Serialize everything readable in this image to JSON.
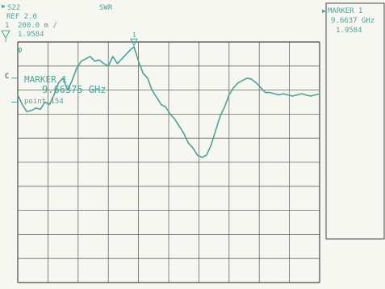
{
  "header": {
    "channel": "S22",
    "format": "SWR",
    "ref": "REF 2.0",
    "scale_num": "1",
    "scale": "200.0 m /",
    "readout": "1.9584"
  },
  "left_labels": {
    "phi": "φ",
    "c": "C"
  },
  "marker_box": {
    "title": "MARKER 1",
    "freq": "9.66375 GHz",
    "point": "point 154"
  },
  "side_panel": {
    "title": "MARKER 1",
    "freq": "9.6637 GHz",
    "value": "1.9584"
  },
  "chart_data": {
    "type": "line",
    "title": "",
    "xlabel": "",
    "ylabel": "",
    "marker_label": "1",
    "grid": true,
    "ref_value": 2.0,
    "per_division": 0.2,
    "y_divisions": 10,
    "x_divisions": 10,
    "marker": {
      "x_div": 3.85,
      "value": 1.9584
    },
    "series": [
      {
        "name": "S22 SWR",
        "x_div": [
          0.0,
          0.15,
          0.3,
          0.45,
          0.6,
          0.75,
          0.9,
          1.05,
          1.2,
          1.35,
          1.5,
          1.65,
          1.8,
          1.95,
          2.1,
          2.25,
          2.4,
          2.55,
          2.7,
          2.85,
          3.0,
          3.15,
          3.3,
          3.45,
          3.6,
          3.75,
          3.85,
          4.0,
          4.15,
          4.3,
          4.45,
          4.6,
          4.75,
          4.9,
          5.05,
          5.2,
          5.35,
          5.5,
          5.65,
          5.8,
          5.95,
          6.1,
          6.25,
          6.4,
          6.55,
          6.7,
          6.85,
          7.0,
          7.15,
          7.3,
          7.45,
          7.6,
          7.75,
          7.9,
          8.05,
          8.2,
          8.35,
          8.5,
          8.65,
          8.8,
          8.95,
          9.1,
          9.25,
          9.4,
          9.55,
          9.7,
          9.85,
          10.0
        ],
        "y": [
          1.56,
          1.48,
          1.42,
          1.43,
          1.45,
          1.44,
          1.5,
          1.48,
          1.56,
          1.66,
          1.7,
          1.6,
          1.68,
          1.78,
          1.84,
          1.86,
          1.88,
          1.84,
          1.85,
          1.82,
          1.8,
          1.88,
          1.82,
          1.86,
          1.9,
          1.94,
          1.96,
          1.84,
          1.74,
          1.7,
          1.6,
          1.54,
          1.48,
          1.46,
          1.4,
          1.36,
          1.3,
          1.24,
          1.16,
          1.12,
          1.06,
          1.04,
          1.06,
          1.14,
          1.26,
          1.38,
          1.46,
          1.56,
          1.62,
          1.66,
          1.68,
          1.7,
          1.69,
          1.66,
          1.62,
          1.58,
          1.58,
          1.57,
          1.56,
          1.57,
          1.56,
          1.55,
          1.56,
          1.57,
          1.56,
          1.55,
          1.56,
          1.57
        ]
      }
    ]
  },
  "colors": {
    "ink": "#4aa39a",
    "grid": "#6a6a6a",
    "frame": "#4a4a4a",
    "paper": "#f7f7f2"
  }
}
